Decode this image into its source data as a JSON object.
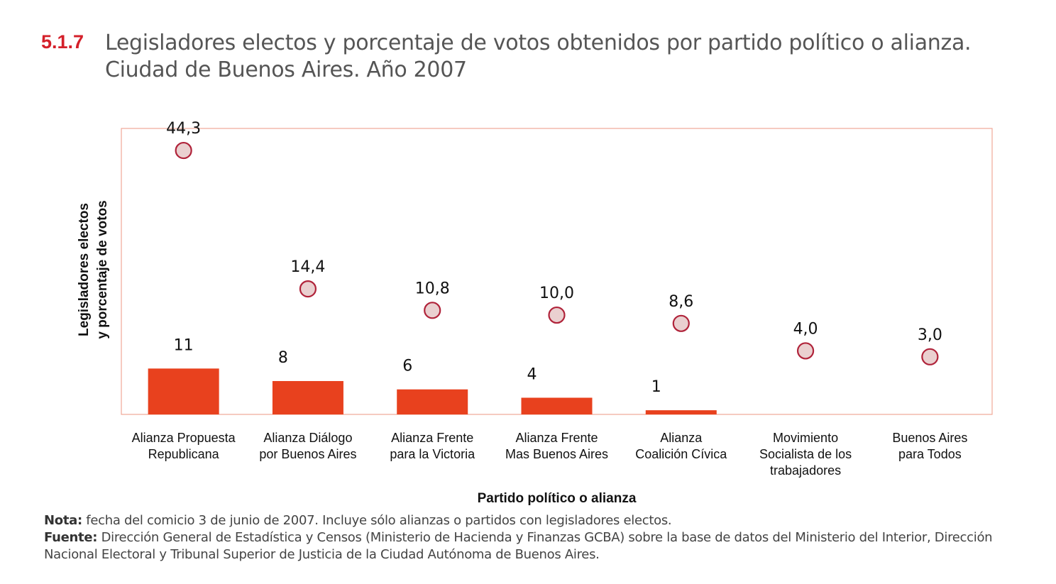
{
  "figure": {
    "number": "5.1.7",
    "title_line1": "Legisladores electos y porcentaje de votos obtenidos por partido político o alianza.",
    "title_line2": "Ciudad de Buenos Aires. Año 2007"
  },
  "chart_data": {
    "type": "bar",
    "categories": [
      [
        "Alianza Propuesta",
        "Republicana"
      ],
      [
        "Alianza Diálogo",
        "por Buenos Aires"
      ],
      [
        "Alianza Frente",
        "para la Victoria"
      ],
      [
        "Alianza Frente",
        "Mas Buenos Aires"
      ],
      [
        "Alianza",
        "Coalición Cívica"
      ],
      [
        "Movimiento",
        "Socialista de los",
        "trabajadores"
      ],
      [
        "Buenos Aires",
        "para Todos"
      ]
    ],
    "series": [
      {
        "type": "bar",
        "values": [
          11,
          8,
          6,
          4,
          1,
          null,
          null
        ],
        "labels": [
          "11",
          "8",
          "6",
          "4",
          "1",
          "",
          ""
        ]
      },
      {
        "type": "scatter",
        "values": [
          44.3,
          14.4,
          10.8,
          10.0,
          8.6,
          4.0,
          3.0
        ],
        "labels": [
          "44,3",
          "14,4",
          "10,8",
          "10,0",
          "8,6",
          "4,0",
          "3,0"
        ]
      }
    ],
    "xlabel": "Partido político o alianza",
    "ylabel": [
      "Legisladores  electos",
      "y porcentaje de votos"
    ],
    "ylim": [
      0,
      48
    ],
    "colors": {
      "bar": "#e8411e",
      "marker_fill": "#ead0d0",
      "marker_stroke": "#b0233a",
      "frame": "#f0a898"
    }
  },
  "notes": {
    "nota_label": "Nota:",
    "nota_text": " fecha del comicio 3 de junio de 2007. Incluye sólo alianzas o partidos con legisladores electos.",
    "fuente_label": "Fuente:",
    "fuente_text": " Dirección General de Estadística y Censos (Ministerio de Hacienda y Finanzas GCBA) sobre la base de datos del Ministerio del Interior, Dirección Nacional Electoral y Tribunal Superior de Justicia de la Ciudad Autónoma de Buenos Aires."
  }
}
